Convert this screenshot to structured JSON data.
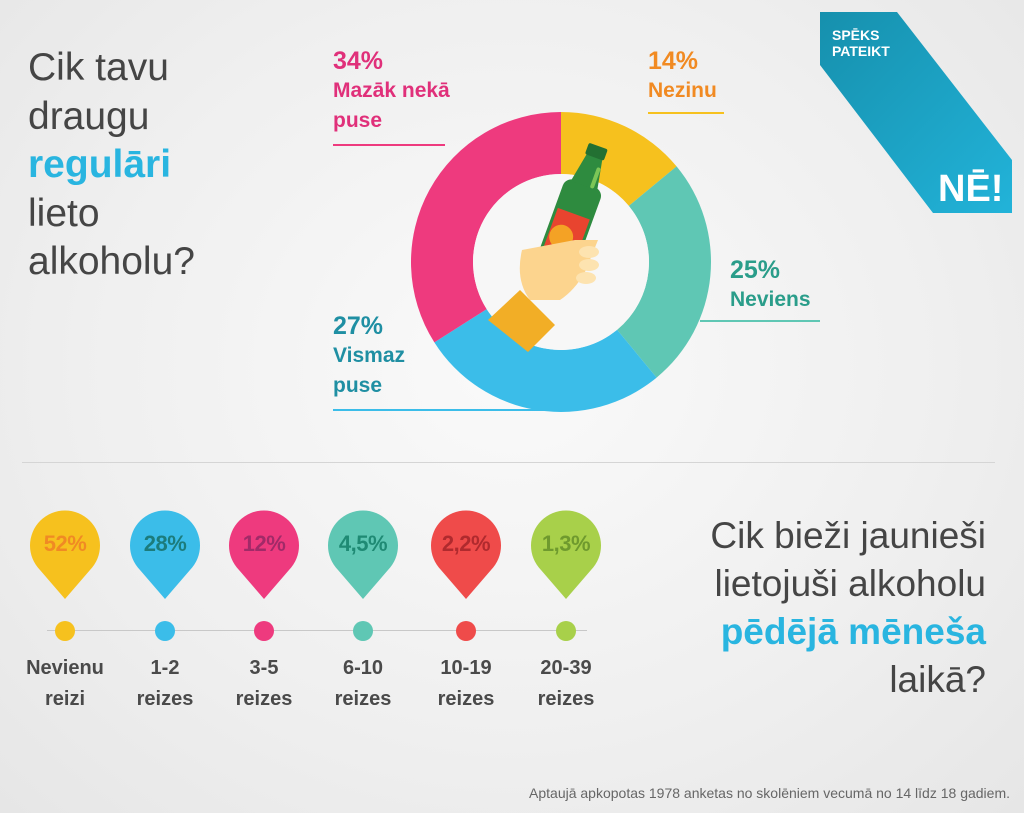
{
  "question1": {
    "line1": "Cik tavu",
    "line2": "draugu",
    "highlight": "regulāri",
    "line4": "lieto",
    "line5": "alkoholu?"
  },
  "logo": {
    "line1": "SPĒKS",
    "line2": "PATEIKT",
    "big": "NĒ!",
    "color": "#1ba3c6"
  },
  "question2": {
    "line1": "Cik bieži jaunieši",
    "line2": "lietojuši alkoholu",
    "highlight": "pēdējā mēneša",
    "line4": "laikā?"
  },
  "footnote": "Aptaujā apkopotas 1978 anketas no skolēniem vecumā no 14 līdz 18 gadiem.",
  "chart_data": [
    {
      "type": "pie",
      "variant": "donut",
      "center_icon": "hand-holding-bottle",
      "slices": [
        {
          "label": "Nezinu",
          "value": 14,
          "display": "14%",
          "color": "#f6c11e",
          "text_color": "#f18a22"
        },
        {
          "label": "Neviens",
          "value": 25,
          "display": "25%",
          "color": "#5fc7b4",
          "text_color": "#2a9d8a"
        },
        {
          "label": "Vismaz puse",
          "label_lines": [
            "Vismaz",
            "puse"
          ],
          "value": 27,
          "display": "27%",
          "color": "#3bbde9",
          "text_color": "#1f8fa3"
        },
        {
          "label": "Mazāk nekā puse",
          "label_lines": [
            "Mazāk nekā",
            "puse"
          ],
          "value": 34,
          "display": "34%",
          "color": "#ee3a7e",
          "text_color": "#e0307a"
        }
      ]
    },
    {
      "type": "pictogram",
      "categories": [
        {
          "line1": "Nevienu",
          "line2": "reizi",
          "value": 52,
          "display": "52%",
          "color": "#f6c11e",
          "text_color": "#f08a24"
        },
        {
          "line1": "1-2",
          "line2": "reizes",
          "value": 28,
          "display": "28%",
          "color": "#3bbde9",
          "text_color": "#1c7c7c"
        },
        {
          "line1": "3-5",
          "line2": "reizes",
          "value": 12,
          "display": "12%",
          "color": "#ee3a7e",
          "text_color": "#a12a68"
        },
        {
          "line1": "6-10",
          "line2": "reizes",
          "value": 4.5,
          "display": "4,5%",
          "color": "#5fc7b4",
          "text_color": "#1f8a74"
        },
        {
          "line1": "10-19",
          "line2": "reizes",
          "value": 2.2,
          "display": "2,2%",
          "color": "#ef4b4a",
          "text_color": "#b02a2e"
        },
        {
          "line1": "20-39",
          "line2": "reizes",
          "value": 1.3,
          "display": "1,3%",
          "color": "#a8d04a",
          "text_color": "#6f9a2e"
        }
      ]
    }
  ]
}
